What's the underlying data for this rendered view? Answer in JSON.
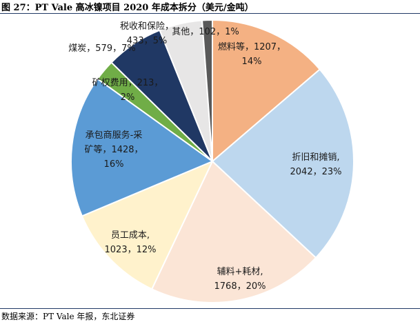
{
  "header": {
    "title": "图 27：PT Vale 高冰镍项目 2020 年成本拆分（美元/金吨）"
  },
  "footer": {
    "source": "数据来源：PT Vale 年报，东北证券"
  },
  "chart_data": {
    "type": "pie",
    "title": "图 27：PT Vale 高冰镍项目 2020 年成本拆分（美元/金吨）",
    "slices": [
      {
        "label": "燃料等",
        "value": 1207,
        "percent": "14%",
        "color": "#f4b183",
        "lines": [
          "燃料等，1207，",
          "14%"
        ]
      },
      {
        "label": "折旧和摊销",
        "value": 2042,
        "percent": "23%",
        "color": "#bdd7ee",
        "lines": [
          "折旧和摊销,",
          "2042，23%"
        ]
      },
      {
        "label": "辅料+耗材",
        "value": 1768,
        "percent": "20%",
        "color": "#fbe5d6",
        "lines": [
          "辅料+耗材,",
          "1768，20%"
        ]
      },
      {
        "label": "员工成本",
        "value": 1023,
        "percent": "12%",
        "color": "#fff2cc",
        "lines": [
          "员工成本,",
          "1023，12%"
        ]
      },
      {
        "label": "承包商服务-采矿等",
        "value": 1428,
        "percent": "16%",
        "color": "#5b9bd5",
        "lines": [
          "承包商服务-采",
          "矿等，1428，",
          "16%"
        ]
      },
      {
        "label": "矿权费用",
        "value": 213,
        "percent": "2%",
        "color": "#70ad47",
        "lines": [
          "矿权费用，213，",
          "2%"
        ]
      },
      {
        "label": "煤炭",
        "value": 579,
        "percent": "7%",
        "color": "#203864",
        "lines": [
          "煤炭，579，7%"
        ]
      },
      {
        "label": "税收和保险",
        "value": 433,
        "percent": "5%",
        "color": "#e7e6e6",
        "lines": [
          "税收和保险，",
          "433，5%"
        ]
      },
      {
        "label": "其他",
        "value": 102,
        "percent": "1%",
        "color": "#595959",
        "lines": [
          "其他，102，1%"
        ]
      }
    ]
  }
}
